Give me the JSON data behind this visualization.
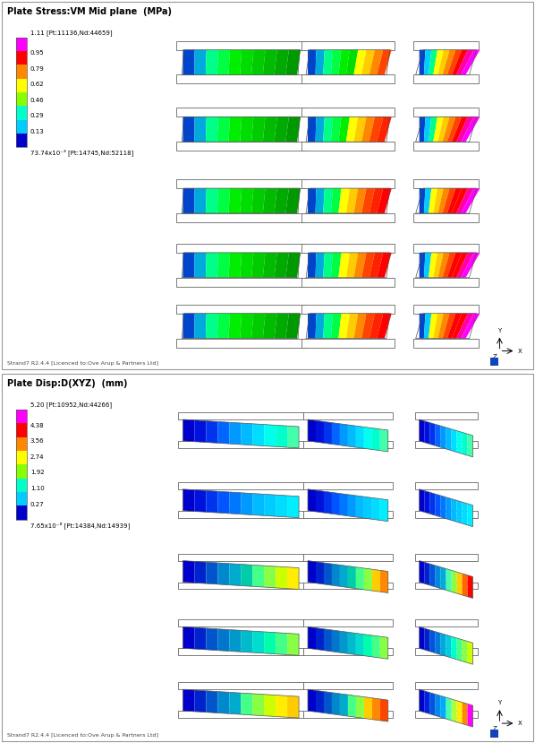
{
  "fig_width": 6.0,
  "fig_height": 8.31,
  "bg_color": "#ffffff",
  "panel1": {
    "title": "Plate Stress:VM Mid plane  (MPa)",
    "legend_top": "1.11 [Pt:11136,Nd:44659]",
    "legend_mid": [
      "0.95",
      "0.79",
      "0.62",
      "0.46",
      "0.29",
      "0.13"
    ],
    "legend_bot": "73.74x10⁻³ [Pt:14745,Nd:52118]",
    "cbar_colors_top_to_bot": [
      "#ff00ff",
      "#ff0000",
      "#ff8800",
      "#ffff00",
      "#88ff00",
      "#00ffcc",
      "#00ccff",
      "#0000cc"
    ],
    "footer": "Strand7 R2.4.4 [Licenced to:Ove Arup & Partners Ltd]"
  },
  "panel2": {
    "title": "Plate Disp:D(XYZ)  (mm)",
    "legend_top": "5.20 [Pt:10952,Nd:44266]",
    "legend_mid": [
      "4.38",
      "3.56",
      "2.74",
      "1.92",
      "1.10",
      "0.27"
    ],
    "legend_bot": "7.65x10⁻⁶ [Pt:14384,Nd:14939]",
    "cbar_colors_top_to_bot": [
      "#ff00ff",
      "#ff0000",
      "#ff8800",
      "#ffff00",
      "#88ff00",
      "#00ffcc",
      "#00ccff",
      "#0000cc"
    ],
    "footer": "Strand7 R2.4.4 [Licenced to:Ove Arup & Partners Ltd]"
  }
}
